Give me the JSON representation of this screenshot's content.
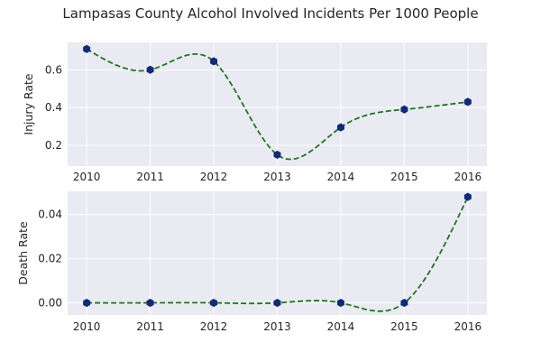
{
  "colors": {
    "background": "#ffffff",
    "plot_background": "#eaeaf2",
    "grid": "#ffffff",
    "line": "#1a7a1a",
    "marker": "#0d2b7a"
  },
  "chart_data": {
    "title": "Lampasas County Alcohol Involved Incidents Per 1000 People",
    "subplots": [
      {
        "type": "line",
        "ylabel": "Injury Rate",
        "xlabel": "",
        "x": [
          2010,
          2011,
          2012,
          2013,
          2014,
          2015,
          2016
        ],
        "y": [
          0.71,
          0.6,
          0.645,
          0.15,
          0.295,
          0.39,
          0.43
        ],
        "xlim": [
          2009.7,
          2016.3
        ],
        "ylim": [
          0.09,
          0.745
        ],
        "xticks": [
          "2010",
          "2011",
          "2012",
          "2013",
          "2014",
          "2015",
          "2016"
        ],
        "yticks": [
          0.2,
          0.4,
          0.6
        ],
        "ytick_labels": [
          "0.2",
          "0.4",
          "0.6"
        ],
        "line_style": "dashed, smoothed",
        "markers": "hexagon",
        "grid": true
      },
      {
        "type": "line",
        "ylabel": "Death Rate",
        "xlabel": "",
        "x": [
          2010,
          2011,
          2012,
          2013,
          2014,
          2015,
          2016
        ],
        "y": [
          0.0,
          0.0,
          0.0,
          0.0,
          0.0,
          0.0,
          0.048
        ],
        "xlim": [
          2009.7,
          2016.3
        ],
        "ylim": [
          -0.0055,
          0.0505
        ],
        "xticks": [
          "2010",
          "2011",
          "2012",
          "2013",
          "2014",
          "2015",
          "2016"
        ],
        "yticks": [
          0.0,
          0.02,
          0.04
        ],
        "ytick_labels": [
          "0.00",
          "0.02",
          "0.04"
        ],
        "line_style": "dashed, smoothed",
        "markers": "hexagon",
        "grid": true
      }
    ]
  }
}
